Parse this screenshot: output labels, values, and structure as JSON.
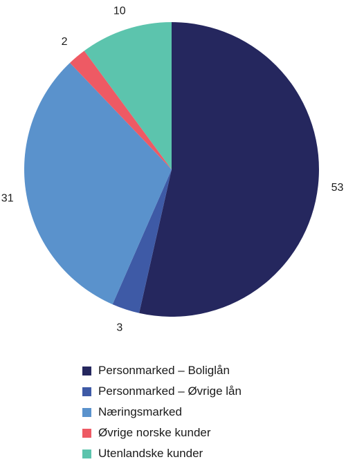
{
  "chart_data": {
    "type": "pie",
    "title": "",
    "categories": [
      "Personmarked – Boliglån",
      "Personmarked – Øvrige lån",
      "Næringsmarked",
      "Øvrige norske kunder",
      "Utenlandske kunder"
    ],
    "values": [
      53,
      3,
      31,
      2,
      10
    ],
    "data_labels": [
      "53",
      "3",
      "31",
      "2",
      "10"
    ],
    "colors": [
      "#25275e",
      "#3e5aa6",
      "#5a92cc",
      "#ee5a64",
      "#5cc4ad"
    ],
    "start_angle_deg": 0,
    "direction": "clockwise",
    "legend_placement": "bottom"
  }
}
